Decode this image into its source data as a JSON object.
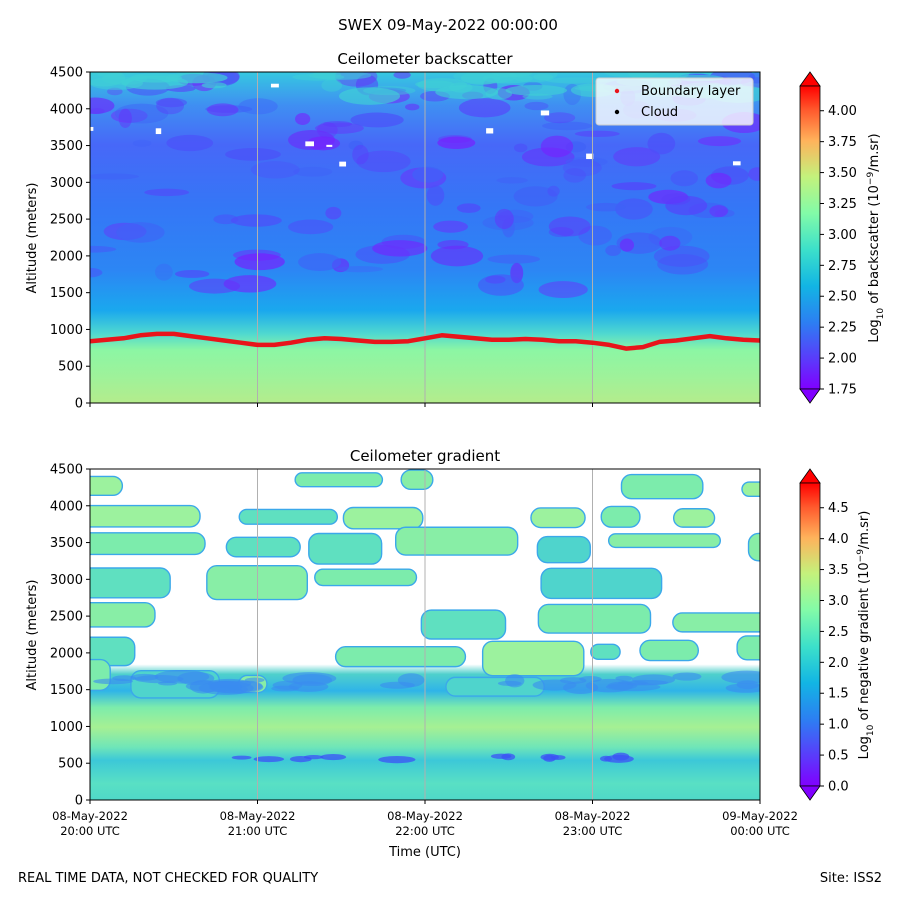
{
  "chart_data": [
    {
      "type": "heatmap",
      "title": "Ceilometer backscatter",
      "xlabel": "",
      "ylabel": "Altitude (meters)",
      "ylim": [
        0,
        4500
      ],
      "y_ticks": [
        "0",
        "500",
        "1000",
        "1500",
        "2000",
        "2500",
        "3000",
        "3500",
        "4000",
        "4500"
      ],
      "x_ticks": [],
      "colorbar": {
        "label": "Log10 of backscatter (10⁻⁹/m.sr)",
        "range": [
          1.75,
          4.2
        ],
        "ticks": [
          "1.75",
          "2.00",
          "2.25",
          "2.50",
          "2.75",
          "3.00",
          "3.25",
          "3.50",
          "3.75",
          "4.00"
        ]
      },
      "legend": {
        "position": "top-right",
        "entries": [
          {
            "label": "Boundary layer",
            "color": "#e8141b"
          },
          {
            "label": "Cloud",
            "color": "#000000"
          }
        ]
      },
      "series": [
        {
          "name": "Boundary layer",
          "x_hours": [
            0,
            0.1,
            0.2,
            0.3,
            0.4,
            0.5,
            0.6,
            0.7,
            0.8,
            0.9,
            1.0,
            1.1,
            1.2,
            1.3,
            1.4,
            1.5,
            1.6,
            1.7,
            1.8,
            1.9,
            2.0,
            2.1,
            2.2,
            2.3,
            2.4,
            2.5,
            2.6,
            2.7,
            2.8,
            2.9,
            3.0,
            3.1,
            3.2,
            3.3,
            3.4,
            3.5,
            3.6,
            3.7,
            3.8,
            3.9,
            4.0
          ],
          "values": [
            840,
            860,
            880,
            920,
            940,
            940,
            910,
            880,
            850,
            820,
            790,
            790,
            820,
            860,
            880,
            870,
            850,
            830,
            830,
            840,
            880,
            920,
            900,
            880,
            860,
            860,
            870,
            860,
            840,
            840,
            820,
            790,
            740,
            760,
            830,
            850,
            880,
            910,
            880,
            860,
            850
          ]
        }
      ]
    },
    {
      "type": "heatmap",
      "title": "Ceilometer gradient",
      "xlabel": "Time (UTC)",
      "ylabel": "Altitude (meters)",
      "ylim": [
        0,
        4500
      ],
      "y_ticks": [
        "0",
        "500",
        "1000",
        "1500",
        "2000",
        "2500",
        "3000",
        "3500",
        "4000",
        "4500"
      ],
      "x_ticks": [
        {
          "date": "08-May-2022",
          "time": "20:00 UTC"
        },
        {
          "date": "08-May-2022",
          "time": "21:00 UTC"
        },
        {
          "date": "08-May-2022",
          "time": "22:00 UTC"
        },
        {
          "date": "08-May-2022",
          "time": "23:00 UTC"
        },
        {
          "date": "09-May-2022",
          "time": "00:00 UTC"
        }
      ],
      "colorbar": {
        "label": "Log10 of negative gradient (10⁻⁹/m.sr)",
        "range": [
          0,
          4.9
        ],
        "ticks": [
          "0.0",
          "0.5",
          "1.0",
          "1.5",
          "2.0",
          "2.5",
          "3.0",
          "3.5",
          "4.0",
          "4.5"
        ]
      },
      "cloud_layers_m": [
        {
          "center": 4300,
          "half": 120
        },
        {
          "center": 3850,
          "half": 110
        },
        {
          "center": 3450,
          "half": 140
        },
        {
          "center": 3000,
          "half": 180
        },
        {
          "center": 2450,
          "half": 140
        },
        {
          "center": 2000,
          "half": 170
        },
        {
          "center": 1620,
          "half": 140
        }
      ]
    }
  ],
  "suptitle": "SWEX 09-May-2022 00:00:00",
  "footer_left": "REAL TIME DATA, NOT CHECKED FOR QUALITY",
  "footer_right": "Site: ISS2",
  "x_axis_label": "Time (UTC)"
}
